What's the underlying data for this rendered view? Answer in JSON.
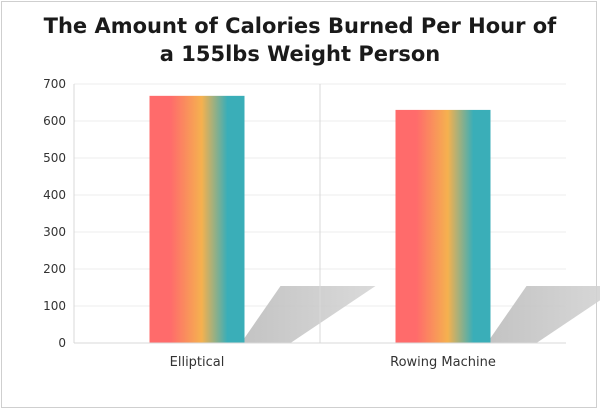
{
  "chart_data": {
    "type": "bar",
    "title_lines": [
      "The Amount of Calories Burned Per Hour of",
      "a 155lbs Weight Person"
    ],
    "categories": [
      "Elliptical",
      "Rowing Machine"
    ],
    "values": [
      668,
      630
    ],
    "ylim": [
      0,
      700
    ],
    "yticks": [
      "0",
      "100",
      "200",
      "300",
      "400",
      "500",
      "600",
      "700"
    ],
    "xlabel": "",
    "ylabel": "",
    "grid": true,
    "legend": "none",
    "bar_gradient": [
      "#ff6b6b",
      "#f5b14f",
      "#3aaeb8"
    ]
  }
}
